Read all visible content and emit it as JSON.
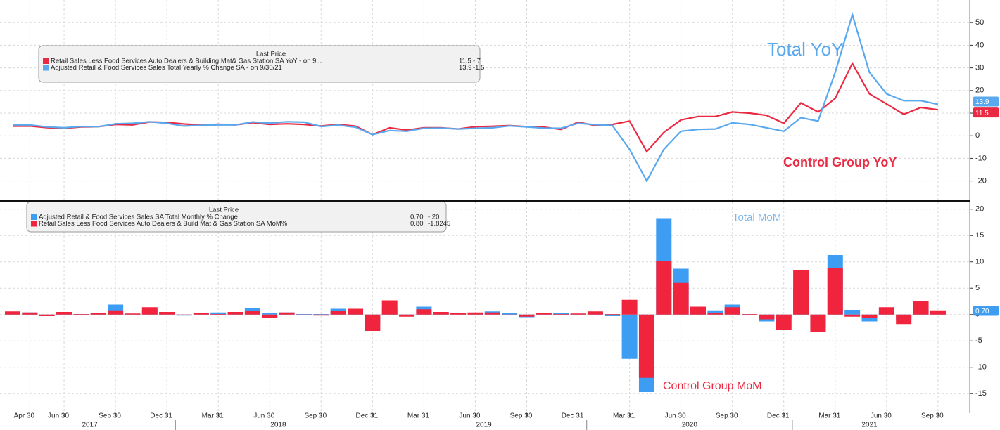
{
  "chart_data": [
    {
      "type": "line",
      "legend_title": "Last Price",
      "series": [
        {
          "name": "Retail Sales Less Food Services Auto Dealers & Building Mat& Gas Station SA YoY - on 9...",
          "color": "#ea2a42",
          "last_price": 11.5,
          "change": {
            "value": -0.7,
            "label": "-.7"
          },
          "values": [
            4.2,
            4.3,
            3.6,
            3.3,
            3.9,
            4,
            5,
            4.8,
            6.1,
            5.9,
            5.2,
            4.8,
            5.1,
            4.8,
            5.8,
            5,
            5.3,
            5,
            4.3,
            5,
            4.3,
            0.5,
            3.5,
            2.5,
            3.5,
            3.5,
            3,
            4,
            4.2,
            4.5,
            4,
            3.8,
            2.8,
            6,
            4.5,
            5,
            6.5,
            -7,
            1.5,
            7,
            8.5,
            8.5,
            10.5,
            10,
            9,
            5.5,
            14.5,
            10.5,
            16.5,
            32,
            18.5,
            14,
            9.5,
            12.5,
            11.5
          ]
        },
        {
          "name": "Adjusted Retail & Food Services Sales Total Yearly % Change SA - on 9/30/21",
          "color": "#5aa8ee",
          "last_price": 13.9,
          "change": -1.5,
          "values": [
            4.8,
            4.8,
            3.9,
            3.5,
            4.1,
            4,
            5.3,
            5.5,
            6.2,
            5.5,
            4.3,
            4.6,
            4.8,
            4.8,
            6.1,
            5.6,
            6.2,
            6,
            4.1,
            4.7,
            3.8,
            0.5,
            2.3,
            2,
            3.3,
            3.4,
            3,
            3.3,
            3.5,
            4.4,
            3.9,
            3.4,
            3.3,
            5.5,
            4.9,
            4.5,
            -6,
            -20,
            -6,
            2,
            2.8,
            3,
            5.7,
            5,
            3.5,
            2,
            8,
            6.5,
            28,
            53.5,
            28,
            18.5,
            15.5,
            15.5,
            13.9
          ]
        }
      ],
      "ylim": [
        -28.5,
        60
      ],
      "yticks": [
        -20,
        -10,
        0,
        10,
        20,
        30,
        40,
        50
      ],
      "grid": true,
      "annotations": [
        {
          "text": "Total YoY",
          "color": "#5aa8ee"
        },
        {
          "text": "Control Group YoY",
          "color": "#ea2a42"
        }
      ]
    },
    {
      "type": "bar",
      "legend_title": "Last Price",
      "categories": [
        null,
        "Apr 30",
        null,
        "Jun 30",
        null,
        null,
        "Sep 30",
        null,
        null,
        "Dec 31",
        null,
        null,
        "Mar 31",
        null,
        null,
        "Jun 30",
        null,
        null,
        "Sep 30",
        null,
        null,
        "Dec 31",
        null,
        null,
        "Mar 31",
        null,
        null,
        "Jun 30",
        null,
        null,
        "Sep 30",
        null,
        null,
        "Dec 31",
        null,
        null,
        "Mar 31",
        null,
        null,
        "Jun 30",
        null,
        null,
        "Sep 30",
        null,
        null,
        "Dec 31",
        null,
        null,
        "Mar 31",
        null,
        null,
        "Jun 30",
        null,
        null,
        "Sep 30"
      ],
      "years": [
        "2017",
        "2018",
        "2019",
        "2020",
        "2021"
      ],
      "series": [
        {
          "name": "Adjusted Retail & Food Services Sales SA Total Monthly % Change",
          "color": "#3d9df3",
          "last_price": {
            "value": 0.7,
            "label": "0.70"
          },
          "change": {
            "value": -0.2,
            "label": "-.20"
          },
          "values": [
            0.3,
            0.4,
            -0.2,
            0.3,
            0.1,
            0.2,
            1.9,
            0.1,
            0.9,
            0.4,
            -0.2,
            0.1,
            0.4,
            0.3,
            1.2,
            0.3,
            0.4,
            0.1,
            0.1,
            1.1,
            0.4,
            -1.9,
            1.0,
            -0.2,
            1.5,
            0.4,
            0.3,
            0.3,
            0.6,
            0.3,
            -0.5,
            0.2,
            0.3,
            0.1,
            0.4,
            -0.3,
            -8.4,
            -14.7,
            18.3,
            8.7,
            1.1,
            0.8,
            1.9,
            0.1,
            -1.3,
            -0.8,
            5.3,
            -2.7,
            11.3,
            0.9,
            -1.3,
            0.7,
            -1.1,
            0.9,
            0.7
          ]
        },
        {
          "name": "Retail Sales Less Food Services Auto Dealers & Build Mat & Gas Station SA MoM%",
          "color": "#f0243c",
          "last_price": {
            "value": 0.8,
            "label": "0.80"
          },
          "change": -1.8245,
          "values": [
            0.6,
            0.4,
            -0.3,
            0.5,
            0.1,
            0.3,
            0.8,
            0.2,
            1.4,
            0.5,
            0,
            0.3,
            0.1,
            0.5,
            0.7,
            -0.6,
            0.4,
            0,
            -0.2,
            0.7,
            1.1,
            -3.1,
            2.7,
            -0.4,
            1.0,
            0.5,
            0.3,
            0.4,
            0.4,
            0,
            -0.4,
            0.3,
            0.1,
            0.2,
            0.6,
            0.1,
            2.8,
            -12,
            10.1,
            6,
            1.5,
            0.3,
            1.4,
            0.1,
            -0.9,
            -2.9,
            8.5,
            -3.3,
            8.8,
            -0.4,
            -0.7,
            1.4,
            -1.8,
            2.6,
            0.8
          ]
        }
      ],
      "ylim": [
        -18.7,
        21.3
      ],
      "yticks": [
        -15,
        -10,
        -5,
        0,
        5,
        10,
        15,
        20
      ],
      "grid": true,
      "annotations": [
        {
          "text": "Total MoM",
          "color": "#7fb8ec"
        },
        {
          "text": "Control Group MoM",
          "color": "#ea2a42"
        }
      ]
    }
  ]
}
